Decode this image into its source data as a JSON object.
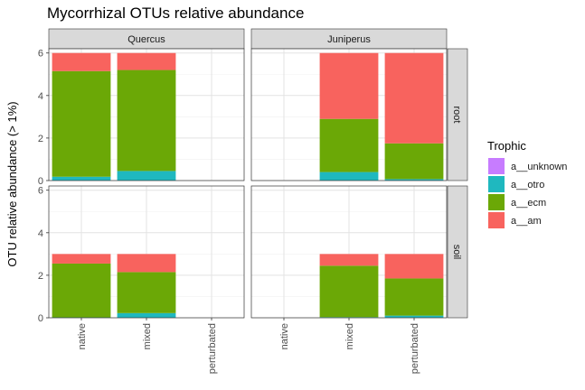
{
  "chart_data": {
    "type": "bar",
    "stacked": true,
    "title": "Mycorrhizal OTUs relative abundance",
    "ylabel": "OTU relative abundance (> 1%)",
    "xlabel": "",
    "ylim": [
      0,
      6.2
    ],
    "y_ticks": [
      0,
      2,
      4,
      6
    ],
    "grid": true,
    "facet_columns": [
      "Quercus",
      "Juniperus"
    ],
    "facet_rows": [
      "root",
      "soil"
    ],
    "categories": [
      "native",
      "mixed",
      "perturbated"
    ],
    "legend": {
      "title": "Trophic",
      "position": "right",
      "entries": [
        {
          "name": "a__unknown",
          "color": "#C77CFF"
        },
        {
          "name": "a__otro",
          "color": "#1FB8BF"
        },
        {
          "name": "a__ecm",
          "color": "#6BA806"
        },
        {
          "name": "a__am",
          "color": "#F8635E"
        }
      ]
    },
    "series_order": [
      "a__otro",
      "a__ecm",
      "a__am"
    ],
    "panels": [
      {
        "col": "Quercus",
        "row": "root",
        "bars": [
          {
            "category": "native",
            "a__otro": 0.18,
            "a__ecm": 4.97,
            "a__am": 0.85
          },
          {
            "category": "mixed",
            "a__otro": 0.45,
            "a__ecm": 4.75,
            "a__am": 0.8
          }
        ]
      },
      {
        "col": "Juniperus",
        "row": "root",
        "bars": [
          {
            "category": "mixed",
            "a__otro": 0.4,
            "a__ecm": 2.5,
            "a__am": 3.1
          },
          {
            "category": "perturbated",
            "a__otro": 0.07,
            "a__ecm": 1.68,
            "a__am": 4.25
          }
        ]
      },
      {
        "col": "Quercus",
        "row": "soil",
        "bars": [
          {
            "category": "native",
            "a__otro": 0.02,
            "a__ecm": 2.53,
            "a__am": 0.45
          },
          {
            "category": "mixed",
            "a__otro": 0.22,
            "a__ecm": 1.93,
            "a__am": 0.85
          }
        ]
      },
      {
        "col": "Juniperus",
        "row": "soil",
        "bars": [
          {
            "category": "mixed",
            "a__otro": 0.03,
            "a__ecm": 2.42,
            "a__am": 0.55
          },
          {
            "category": "perturbated",
            "a__otro": 0.1,
            "a__ecm": 1.75,
            "a__am": 1.15
          }
        ]
      }
    ]
  }
}
